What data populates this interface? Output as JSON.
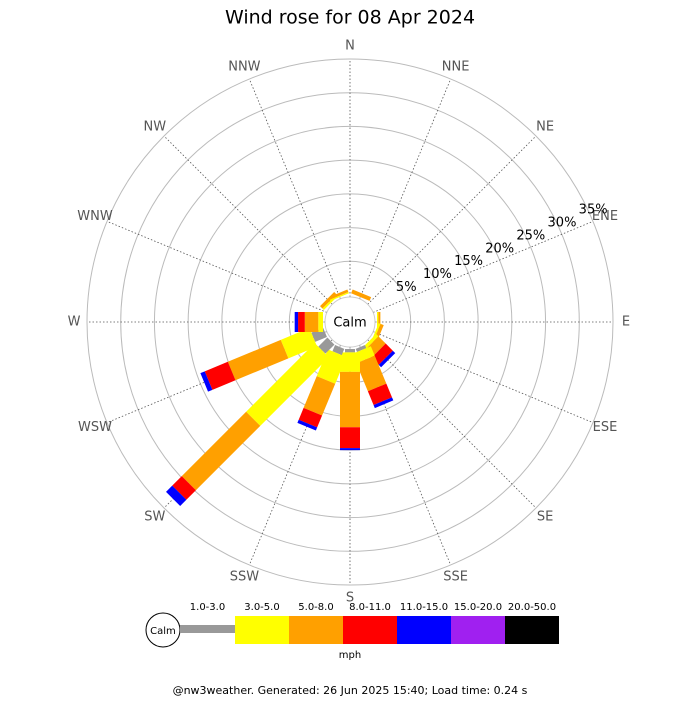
{
  "chart_data": {
    "type": "windrose",
    "title": "Wind rose for 08 Apr 2024",
    "directions": [
      "N",
      "NNE",
      "NE",
      "ENE",
      "E",
      "ESE",
      "SE",
      "SSE",
      "S",
      "SSW",
      "SW",
      "WSW",
      "W",
      "WNW",
      "NW",
      "NNW"
    ],
    "rlim": [
      0,
      35
    ],
    "rticks": [
      {
        "value": 5,
        "label": "5%"
      },
      {
        "value": 10,
        "label": "10%"
      },
      {
        "value": 15,
        "label": "15%"
      },
      {
        "value": 20,
        "label": "20%"
      },
      {
        "value": 25,
        "label": "25%"
      },
      {
        "value": 30,
        "label": "30%"
      },
      {
        "value": 35,
        "label": "35%"
      }
    ],
    "calm_label": "Calm",
    "unit": "mph",
    "series": [
      {
        "name": "1.0-3.0",
        "color": "#999999",
        "values": [
          0,
          0,
          0,
          0,
          0,
          0,
          0,
          0.5,
          0.5,
          1,
          1.9,
          1.9,
          0,
          0,
          0,
          0
        ]
      },
      {
        "name": "3.0-5.0",
        "color": "#ffff00",
        "values": [
          0,
          0,
          0,
          0,
          0.2,
          0.3,
          0.5,
          1.5,
          2.9,
          4.3,
          14.4,
          4.6,
          0.7,
          0,
          0.3,
          0.2
        ]
      },
      {
        "name": "5.0-8.0",
        "color": "#ffa000",
        "values": [
          0,
          0.6,
          0,
          0,
          0.3,
          0.5,
          1.5,
          4.5,
          8.2,
          5.1,
          13.5,
          8.5,
          2.0,
          0,
          0.5,
          0.4
        ]
      },
      {
        "name": "8.0-11.0",
        "color": "#ff0000",
        "values": [
          0,
          0,
          0,
          0,
          0,
          0,
          1.5,
          2.2,
          3.1,
          1.9,
          2.0,
          3.7,
          1.0,
          0,
          0,
          0
        ]
      },
      {
        "name": "11.0-15.0",
        "color": "#0000ff",
        "values": [
          0,
          0,
          0,
          0,
          0,
          0,
          0.5,
          0.5,
          0.3,
          0.5,
          1.3,
          0.7,
          0.5,
          0,
          0,
          0
        ]
      },
      {
        "name": "15.0-20.0",
        "color": "#a020f0",
        "values": [
          0,
          0,
          0,
          0,
          0,
          0,
          0,
          0,
          0,
          0,
          0,
          0,
          0,
          0,
          0,
          0
        ]
      },
      {
        "name": "20.0-50.0",
        "color": "#000000",
        "values": [
          0,
          0,
          0,
          0,
          0,
          0,
          0,
          0,
          0,
          0,
          0,
          0,
          0,
          0,
          0,
          0
        ]
      }
    ],
    "footer": "@nw3weather. Generated: 26 Jun 2025 15:40; Load time: 0.24 s"
  }
}
